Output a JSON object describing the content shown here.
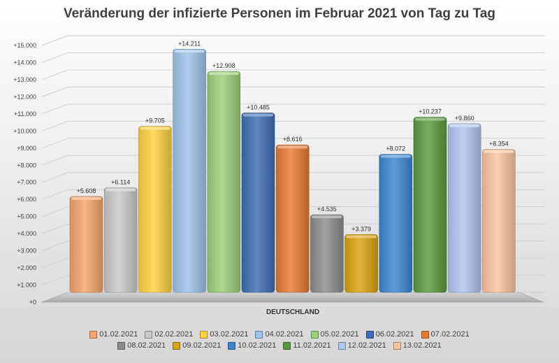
{
  "chart_data": {
    "type": "bar",
    "title": "Veränderung der infizierte Personen im Februar 2021 von Tag zu Tag",
    "category": "DEUTSCHLAND",
    "xlabel": "",
    "ylabel": "",
    "ylim": [
      0,
      15000
    ],
    "yticks": [
      "+0",
      "+1.000",
      "+2.000",
      "+3.000",
      "+4.000",
      "+5.000",
      "+6.000",
      "+7.000",
      "+8.000",
      "+9.000",
      "+10.000",
      "+11.000",
      "+12.000",
      "+13.000",
      "+14.000",
      "+15.000"
    ],
    "grid": true,
    "legend_position": "bottom",
    "series": [
      {
        "name": "01.02.2021",
        "value": 5608,
        "label": "+5.608",
        "color": "#F4A46E"
      },
      {
        "name": "02.02.2021",
        "value": 6114,
        "label": "+6.114",
        "color": "#C9C9C9"
      },
      {
        "name": "03.02.2021",
        "value": 9705,
        "label": "+9.705",
        "color": "#FFD23F"
      },
      {
        "name": "04.02.2021",
        "value": 14211,
        "label": "+14.211",
        "color": "#9DC3EA"
      },
      {
        "name": "05.02.2021",
        "value": 12908,
        "label": "+12.908",
        "color": "#9BD07A"
      },
      {
        "name": "06.02.2021",
        "value": 10485,
        "label": "+10.485",
        "color": "#3E6DB5"
      },
      {
        "name": "07.02.2021",
        "value": 8616,
        "label": "+8.616",
        "color": "#E77A32"
      },
      {
        "name": "08.02.2021",
        "value": 4535,
        "label": "+4.535",
        "color": "#8C8C8C"
      },
      {
        "name": "09.02.2021",
        "value": 3379,
        "label": "+3.379",
        "color": "#D9A40E"
      },
      {
        "name": "10.02.2021",
        "value": 8072,
        "label": "+8.072",
        "color": "#3B86D1"
      },
      {
        "name": "11.02.2021",
        "value": 10237,
        "label": "+10.237",
        "color": "#5A9A3E"
      },
      {
        "name": "12.02.2021",
        "value": 9860,
        "label": "+9.860",
        "color": "#AFC6F2"
      },
      {
        "name": "13.02.2021",
        "value": 8354,
        "label": "+8.354",
        "color": "#FAC59E"
      }
    ]
  }
}
